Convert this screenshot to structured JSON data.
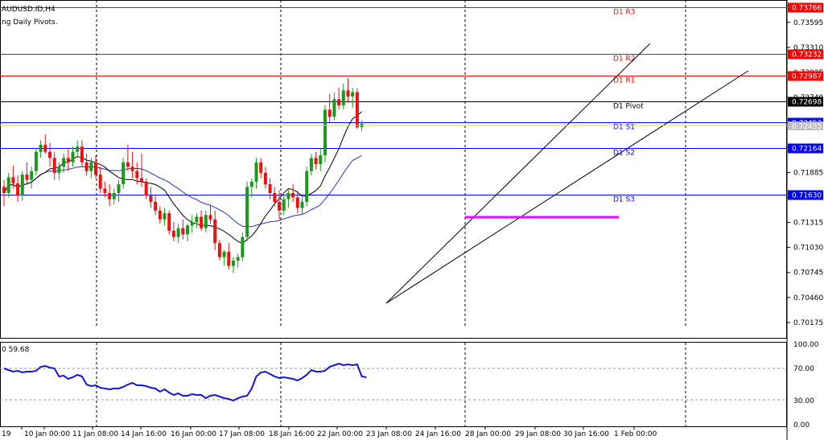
{
  "header": {
    "symbol_line": "AUDUSD.ID,H4",
    "indicator_line": "ng Daily Pivots."
  },
  "oscillator": {
    "label": "0 59.68",
    "levels": [
      "100.00",
      "70.00",
      "30.00",
      "0.00"
    ]
  },
  "price_axis": {
    "ticks": [
      "0.73595",
      "0.73310",
      "0.73025",
      "0.72740",
      "0.72455",
      "0.72170",
      "0.71885",
      "0.71600",
      "0.71315",
      "0.71030",
      "0.70745",
      "0.70460",
      "0.70175"
    ],
    "current_price": "0.72435"
  },
  "time_axis": {
    "labels": [
      "19",
      "10 Jan 00:00",
      "11 Jan 08:00",
      "14 Jan 16:00",
      "16 Jan 00:00",
      "17 Jan 08:00",
      "18 Jan 16:00",
      "22 Jan 00:00",
      "23 Jan 08:00",
      "24 Jan 16:00",
      "28 Jan 00:00",
      "29 Jan 08:00",
      "30 Jan 16:00",
      "1 Feb 00:00"
    ]
  },
  "pivot_levels": [
    {
      "name": "D1 R3",
      "value": "0.73766",
      "color": "#ff0000"
    },
    {
      "name": "D1 R2",
      "value": "0.73232",
      "color": "#ff0000"
    },
    {
      "name": "D1 R1",
      "value": "0.72987",
      "color": "#ff0000"
    },
    {
      "name": "D1 Pivot",
      "value": "0.72698",
      "color": "#000000"
    },
    {
      "name": "D1 S1",
      "value": "0.72453",
      "color": "#0000ff"
    },
    {
      "name": "D1 S2",
      "value": "0.72164",
      "color": "#0000ff"
    },
    {
      "name": "D1 S3",
      "value": "0.71630",
      "color": "#0000ff"
    }
  ],
  "colors": {
    "bull": "#1a9a1a",
    "bear": "#ee1111",
    "ma_fast": "#000000",
    "ma_slow": "#2233cc",
    "channel": "#000000",
    "support_line": "#ff00ff",
    "oscillator_line": "#1515e0"
  },
  "chart_data": {
    "type": "candlestick",
    "price_range": [
      0.7,
      0.7385
    ],
    "candles": [
      {
        "o": 0.7172,
        "h": 0.718,
        "l": 0.715,
        "c": 0.7165
      },
      {
        "o": 0.7165,
        "h": 0.7188,
        "l": 0.716,
        "c": 0.7183
      },
      {
        "o": 0.7183,
        "h": 0.7196,
        "l": 0.717,
        "c": 0.7176
      },
      {
        "o": 0.7176,
        "h": 0.7185,
        "l": 0.7155,
        "c": 0.7162
      },
      {
        "o": 0.7162,
        "h": 0.719,
        "l": 0.7156,
        "c": 0.7186
      },
      {
        "o": 0.7186,
        "h": 0.72,
        "l": 0.7175,
        "c": 0.718
      },
      {
        "o": 0.718,
        "h": 0.7195,
        "l": 0.717,
        "c": 0.719
      },
      {
        "o": 0.719,
        "h": 0.7215,
        "l": 0.7185,
        "c": 0.7212
      },
      {
        "o": 0.7212,
        "h": 0.7225,
        "l": 0.7205,
        "c": 0.722
      },
      {
        "o": 0.722,
        "h": 0.7232,
        "l": 0.721,
        "c": 0.7212
      },
      {
        "o": 0.7212,
        "h": 0.7222,
        "l": 0.7195,
        "c": 0.7205
      },
      {
        "o": 0.7205,
        "h": 0.7212,
        "l": 0.718,
        "c": 0.7188
      },
      {
        "o": 0.7188,
        "h": 0.72,
        "l": 0.718,
        "c": 0.7195
      },
      {
        "o": 0.7195,
        "h": 0.721,
        "l": 0.7188,
        "c": 0.7205
      },
      {
        "o": 0.7205,
        "h": 0.7215,
        "l": 0.719,
        "c": 0.72
      },
      {
        "o": 0.72,
        "h": 0.7218,
        "l": 0.7195,
        "c": 0.7212
      },
      {
        "o": 0.7212,
        "h": 0.7225,
        "l": 0.7205,
        "c": 0.7218
      },
      {
        "o": 0.7218,
        "h": 0.7225,
        "l": 0.7195,
        "c": 0.72
      },
      {
        "o": 0.72,
        "h": 0.721,
        "l": 0.7185,
        "c": 0.719
      },
      {
        "o": 0.719,
        "h": 0.7205,
        "l": 0.7182,
        "c": 0.72
      },
      {
        "o": 0.72,
        "h": 0.7208,
        "l": 0.7182,
        "c": 0.7186
      },
      {
        "o": 0.7186,
        "h": 0.7195,
        "l": 0.7165,
        "c": 0.717
      },
      {
        "o": 0.717,
        "h": 0.7178,
        "l": 0.716,
        "c": 0.7165
      },
      {
        "o": 0.7165,
        "h": 0.7175,
        "l": 0.715,
        "c": 0.7158
      },
      {
        "o": 0.7158,
        "h": 0.717,
        "l": 0.7152,
        "c": 0.7165
      },
      {
        "o": 0.7165,
        "h": 0.718,
        "l": 0.7155,
        "c": 0.7175
      },
      {
        "o": 0.7175,
        "h": 0.7205,
        "l": 0.717,
        "c": 0.72
      },
      {
        "o": 0.72,
        "h": 0.722,
        "l": 0.719,
        "c": 0.7195
      },
      {
        "o": 0.7195,
        "h": 0.7212,
        "l": 0.7182,
        "c": 0.719
      },
      {
        "o": 0.719,
        "h": 0.72,
        "l": 0.7175,
        "c": 0.7182
      },
      {
        "o": 0.7182,
        "h": 0.721,
        "l": 0.7172,
        "c": 0.7178
      },
      {
        "o": 0.7178,
        "h": 0.7182,
        "l": 0.7158,
        "c": 0.7162
      },
      {
        "o": 0.7162,
        "h": 0.7172,
        "l": 0.7148,
        "c": 0.7155
      },
      {
        "o": 0.7155,
        "h": 0.7162,
        "l": 0.714,
        "c": 0.7145
      },
      {
        "o": 0.7145,
        "h": 0.715,
        "l": 0.713,
        "c": 0.7135
      },
      {
        "o": 0.7135,
        "h": 0.7148,
        "l": 0.7128,
        "c": 0.7142
      },
      {
        "o": 0.7142,
        "h": 0.7145,
        "l": 0.7118,
        "c": 0.7122
      },
      {
        "o": 0.7122,
        "h": 0.7132,
        "l": 0.711,
        "c": 0.7115
      },
      {
        "o": 0.7115,
        "h": 0.713,
        "l": 0.7108,
        "c": 0.7125
      },
      {
        "o": 0.7125,
        "h": 0.7135,
        "l": 0.7112,
        "c": 0.7118
      },
      {
        "o": 0.7118,
        "h": 0.713,
        "l": 0.711,
        "c": 0.7128
      },
      {
        "o": 0.7128,
        "h": 0.714,
        "l": 0.712,
        "c": 0.7132
      },
      {
        "o": 0.7132,
        "h": 0.7142,
        "l": 0.7125,
        "c": 0.7138
      },
      {
        "o": 0.7138,
        "h": 0.7145,
        "l": 0.7122,
        "c": 0.7125
      },
      {
        "o": 0.7125,
        "h": 0.7145,
        "l": 0.712,
        "c": 0.714
      },
      {
        "o": 0.714,
        "h": 0.7152,
        "l": 0.713,
        "c": 0.7135
      },
      {
        "o": 0.7135,
        "h": 0.7145,
        "l": 0.71,
        "c": 0.7108
      },
      {
        "o": 0.7108,
        "h": 0.7112,
        "l": 0.7088,
        "c": 0.7092
      },
      {
        "o": 0.7092,
        "h": 0.71,
        "l": 0.7082,
        "c": 0.7098
      },
      {
        "o": 0.7098,
        "h": 0.7108,
        "l": 0.7078,
        "c": 0.7082
      },
      {
        "o": 0.7082,
        "h": 0.7092,
        "l": 0.7074,
        "c": 0.7088
      },
      {
        "o": 0.7088,
        "h": 0.7096,
        "l": 0.708,
        "c": 0.7092
      },
      {
        "o": 0.7092,
        "h": 0.712,
        "l": 0.7088,
        "c": 0.7115
      },
      {
        "o": 0.7115,
        "h": 0.7178,
        "l": 0.711,
        "c": 0.7172
      },
      {
        "o": 0.7172,
        "h": 0.7182,
        "l": 0.716,
        "c": 0.7178
      },
      {
        "o": 0.7178,
        "h": 0.7205,
        "l": 0.717,
        "c": 0.72
      },
      {
        "o": 0.72,
        "h": 0.7205,
        "l": 0.7182,
        "c": 0.7188
      },
      {
        "o": 0.7188,
        "h": 0.7195,
        "l": 0.717,
        "c": 0.7175
      },
      {
        "o": 0.7175,
        "h": 0.7182,
        "l": 0.7158,
        "c": 0.7165
      },
      {
        "o": 0.7165,
        "h": 0.7172,
        "l": 0.715,
        "c": 0.7155
      },
      {
        "o": 0.7155,
        "h": 0.7168,
        "l": 0.7135,
        "c": 0.7145
      },
      {
        "o": 0.7145,
        "h": 0.7162,
        "l": 0.714,
        "c": 0.7158
      },
      {
        "o": 0.7158,
        "h": 0.717,
        "l": 0.7148,
        "c": 0.7165
      },
      {
        "o": 0.7165,
        "h": 0.7175,
        "l": 0.7155,
        "c": 0.716
      },
      {
        "o": 0.716,
        "h": 0.7168,
        "l": 0.7142,
        "c": 0.7148
      },
      {
        "o": 0.7148,
        "h": 0.716,
        "l": 0.714,
        "c": 0.7155
      },
      {
        "o": 0.7155,
        "h": 0.7195,
        "l": 0.715,
        "c": 0.719
      },
      {
        "o": 0.719,
        "h": 0.721,
        "l": 0.7185,
        "c": 0.7205
      },
      {
        "o": 0.7205,
        "h": 0.7212,
        "l": 0.7192,
        "c": 0.7198
      },
      {
        "o": 0.7198,
        "h": 0.7215,
        "l": 0.719,
        "c": 0.7208
      },
      {
        "o": 0.7208,
        "h": 0.7265,
        "l": 0.72,
        "c": 0.726
      },
      {
        "o": 0.726,
        "h": 0.7278,
        "l": 0.7245,
        "c": 0.7252
      },
      {
        "o": 0.7252,
        "h": 0.728,
        "l": 0.7248,
        "c": 0.7272
      },
      {
        "o": 0.7272,
        "h": 0.7285,
        "l": 0.726,
        "c": 0.7265
      },
      {
        "o": 0.7265,
        "h": 0.729,
        "l": 0.726,
        "c": 0.7282
      },
      {
        "o": 0.7282,
        "h": 0.7296,
        "l": 0.7268,
        "c": 0.7275
      },
      {
        "o": 0.7275,
        "h": 0.7285,
        "l": 0.7262,
        "c": 0.728
      },
      {
        "o": 0.728,
        "h": 0.7284,
        "l": 0.7238,
        "c": 0.724
      },
      {
        "o": 0.724,
        "h": 0.7248,
        "l": 0.7236,
        "c": 0.7244
      }
    ],
    "oscillator": [
      70,
      68,
      66,
      67,
      65,
      66,
      66,
      67,
      72,
      73,
      71,
      70,
      60,
      61,
      57,
      59,
      62,
      60,
      50,
      48,
      49,
      46,
      45,
      44,
      45,
      45,
      47,
      50,
      52,
      49,
      49,
      48,
      46,
      45,
      41,
      44,
      40,
      37,
      39,
      36,
      36,
      38,
      37,
      37,
      33,
      36,
      37,
      35,
      33,
      32,
      30,
      33,
      35,
      36,
      45,
      60,
      65,
      66,
      63,
      60,
      58,
      59,
      58,
      57,
      55,
      58,
      62,
      68,
      66,
      66,
      67,
      72,
      74,
      76,
      74,
      75,
      74,
      75,
      60,
      59
    ]
  }
}
